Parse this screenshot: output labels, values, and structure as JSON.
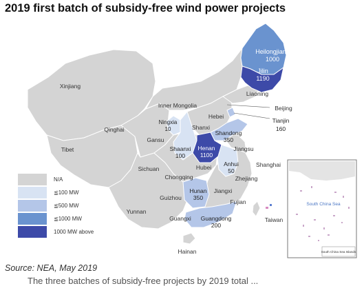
{
  "title": "2019 first batch of subsidy-free wind power projects",
  "source": "Source: NEA, May 2019",
  "bottom_fragment": "The three batches of subsidy-free projects by 2019 total ...",
  "colors": {
    "na": "#d4d4d4",
    "le100": "#d8e3f3",
    "le500": "#b4c6e8",
    "le1000": "#6a93cf",
    "above1000": "#3d4aa8",
    "border": "#ffffff",
    "sea_islands": "#c9a6c9"
  },
  "legend": [
    {
      "label": "N/A",
      "color_key": "na"
    },
    {
      "label": "≦100 MW",
      "color_key": "le100"
    },
    {
      "label": "≦500 MW",
      "color_key": "le500"
    },
    {
      "label": "≦1000 MW",
      "color_key": "le1000"
    },
    {
      "label": "1000 MW above",
      "color_key": "above1000"
    }
  ],
  "provinces_with_capacity": [
    {
      "name": "Heilongjiang",
      "mw": "1000"
    },
    {
      "name": "Jilin",
      "mw": "1190"
    },
    {
      "name": "Ningxia",
      "mw": "10"
    },
    {
      "name": "Shandong",
      "mw": "350"
    },
    {
      "name": "Henan",
      "mw": "1100"
    },
    {
      "name": "Shaanxi",
      "mw": "100"
    },
    {
      "name": "Anhui",
      "mw": "50"
    },
    {
      "name": "Hunan",
      "mw": "350"
    },
    {
      "name": "Guangdong",
      "mw": "200"
    },
    {
      "name": "Tianjin",
      "mw": "160"
    }
  ],
  "place_labels": {
    "xinjiang": "Xinjiang",
    "tibet": "Tibet",
    "qinghai": "Qinghai",
    "inner_mongolia": "Inner Mongolia",
    "gansu": "Gansu",
    "sichuan": "Sichuan",
    "yunnan": "Yunnan",
    "guizhou": "Guizhou",
    "guangxi": "Guangxi",
    "hainan": "Hainan",
    "chongqing": "Chongqing",
    "hubei": "Hubei",
    "jiangxi": "Jiangxi",
    "fujian": "Fujian",
    "zhejiang": "Zhejiang",
    "shanghai": "Shanghai",
    "jiangsu": "Jiangsu",
    "shanxi": "Shanxi",
    "hebei": "Hebei",
    "beijing": "Beijing",
    "liaoning": "Liaoning",
    "taiwan": "Taiwan"
  },
  "inset": {
    "sea_label": "South China Sea",
    "islands_label": "South China Sea Islands"
  }
}
